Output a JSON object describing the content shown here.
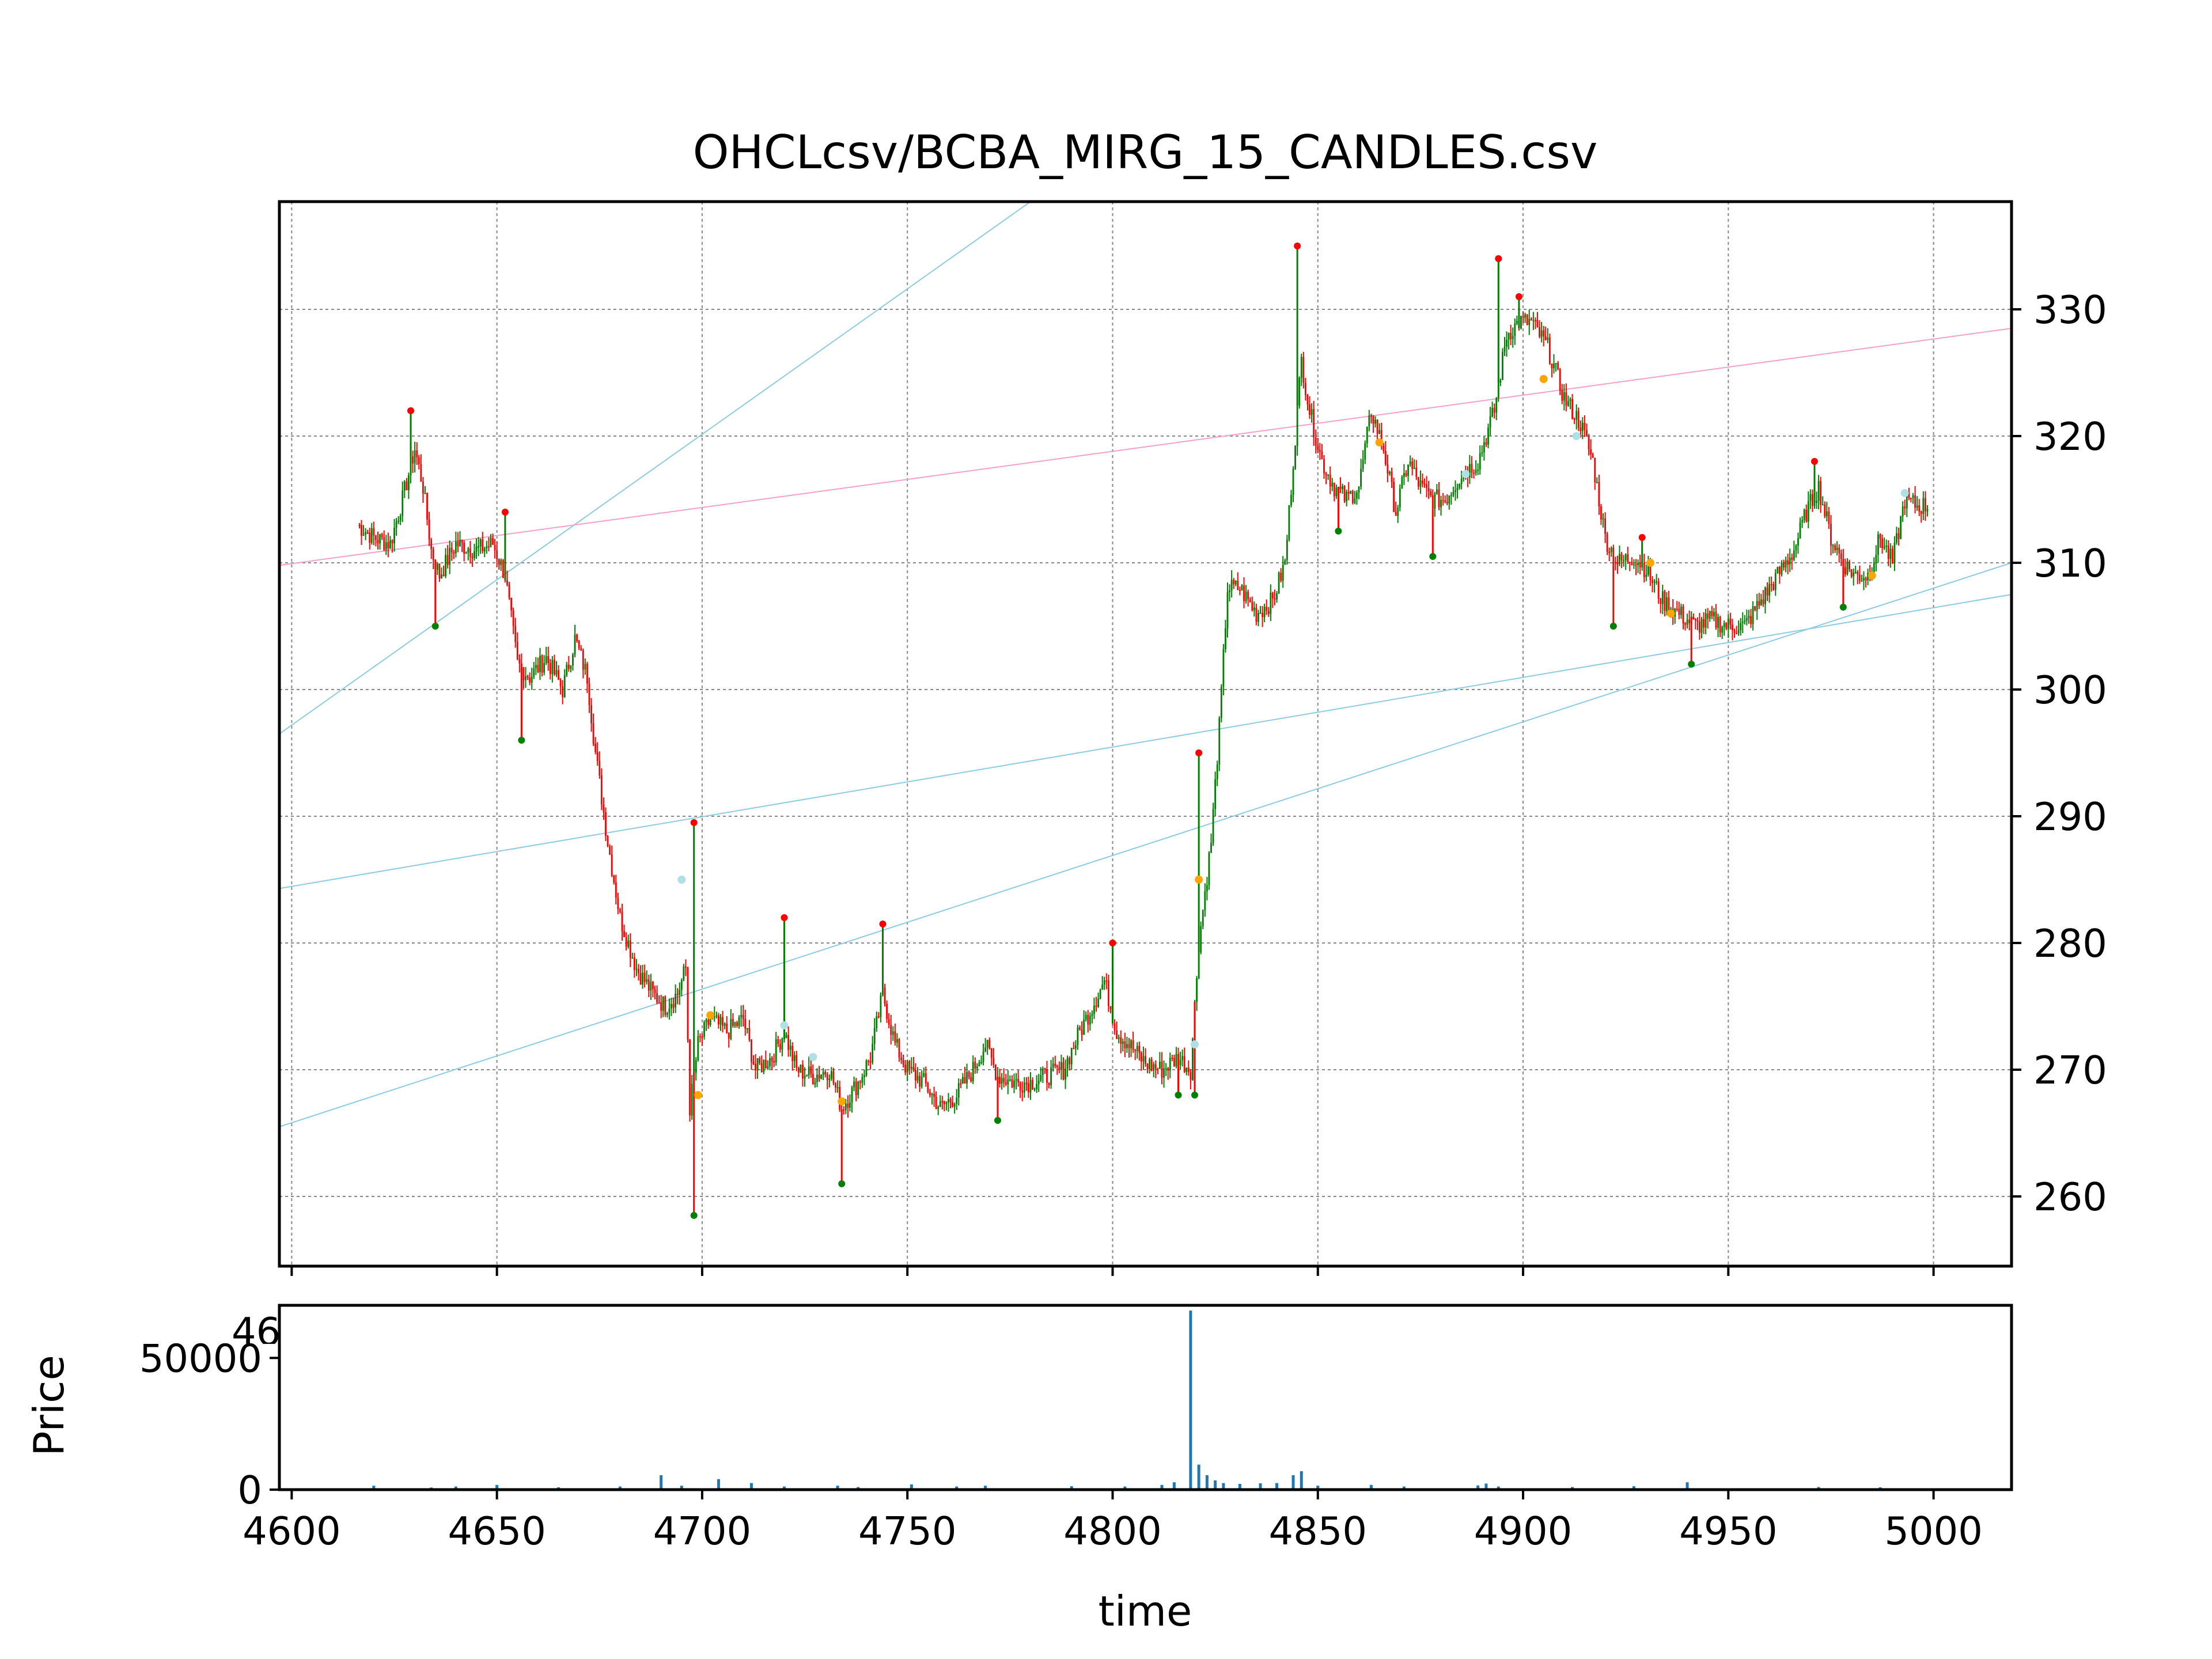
{
  "chart_data": [
    {
      "type": "candlestick",
      "title": "OHCLcsv/BCBA_MIRG_15_CANDLES.csv",
      "y_axis_side": "right",
      "xlim": [
        4597,
        5019
      ],
      "ylim": [
        254.5,
        338.5
      ],
      "x_ticks": [
        4600,
        4650,
        4700,
        4750,
        4800,
        4850,
        4900,
        4950,
        5000
      ],
      "y_ticks": [
        260,
        270,
        280,
        290,
        300,
        310,
        320,
        330
      ],
      "grid": true,
      "colors": {
        "up": "#008000",
        "down": "#ff0000",
        "grid": "#888888",
        "trend_blue": "#8ccbe0",
        "trend_pink": "#f4a0c8",
        "marker_orange": "#ffa500",
        "marker_cyan": "#b0e0e6"
      },
      "close_path": [
        [
          4616,
          313
        ],
        [
          4620,
          312
        ],
        [
          4624,
          311.5
        ],
        [
          4627,
          315
        ],
        [
          4630,
          319
        ],
        [
          4632,
          316
        ],
        [
          4634,
          311
        ],
        [
          4636,
          309
        ],
        [
          4640,
          311.5
        ],
        [
          4645,
          311
        ],
        [
          4649,
          311.5
        ],
        [
          4652,
          309
        ],
        [
          4655,
          302
        ],
        [
          4658,
          301
        ],
        [
          4662,
          302.5
        ],
        [
          4666,
          300
        ],
        [
          4669,
          304
        ],
        [
          4672,
          301
        ],
        [
          4674,
          295
        ],
        [
          4677,
          288
        ],
        [
          4680,
          282
        ],
        [
          4684,
          278
        ],
        [
          4688,
          276
        ],
        [
          4691,
          275
        ],
        [
          4694,
          276
        ],
        [
          4696,
          278
        ],
        [
          4697,
          267
        ],
        [
          4699,
          272
        ],
        [
          4702,
          274
        ],
        [
          4706,
          273
        ],
        [
          4710,
          274
        ],
        [
          4713,
          270
        ],
        [
          4717,
          271
        ],
        [
          4720,
          273
        ],
        [
          4723,
          270
        ],
        [
          4727,
          269.5
        ],
        [
          4731,
          270
        ],
        [
          4734,
          267
        ],
        [
          4738,
          269
        ],
        [
          4741,
          271
        ],
        [
          4744,
          276
        ],
        [
          4747,
          272
        ],
        [
          4750,
          270
        ],
        [
          4754,
          269
        ],
        [
          4758,
          267
        ],
        [
          4762,
          268
        ],
        [
          4766,
          270
        ],
        [
          4769,
          272
        ],
        [
          4772,
          269.5
        ],
        [
          4776,
          269
        ],
        [
          4780,
          269
        ],
        [
          4784,
          269.5
        ],
        [
          4788,
          270
        ],
        [
          4792,
          273
        ],
        [
          4795,
          275
        ],
        [
          4798,
          277
        ],
        [
          4801,
          273
        ],
        [
          4804,
          272
        ],
        [
          4808,
          270.5
        ],
        [
          4812,
          270
        ],
        [
          4816,
          271
        ],
        [
          4819,
          270
        ],
        [
          4821,
          280
        ],
        [
          4824,
          288
        ],
        [
          4826,
          297
        ],
        [
          4828,
          308
        ],
        [
          4831,
          308
        ],
        [
          4835,
          306
        ],
        [
          4839,
          307
        ],
        [
          4842,
          310
        ],
        [
          4845,
          322
        ],
        [
          4846,
          326
        ],
        [
          4848,
          322
        ],
        [
          4851,
          318
        ],
        [
          4854,
          316
        ],
        [
          4857,
          315
        ],
        [
          4860,
          316
        ],
        [
          4863,
          322
        ],
        [
          4866,
          319
        ],
        [
          4869,
          314
        ],
        [
          4872,
          318
        ],
        [
          4875,
          316
        ],
        [
          4878,
          315
        ],
        [
          4881,
          315
        ],
        [
          4885,
          317
        ],
        [
          4889,
          318
        ],
        [
          4893,
          322
        ],
        [
          4896,
          328
        ],
        [
          4899,
          329
        ],
        [
          4902,
          329
        ],
        [
          4906,
          327
        ],
        [
          4910,
          323
        ],
        [
          4914,
          321
        ],
        [
          4917,
          318
        ],
        [
          4920,
          312
        ],
        [
          4923,
          310
        ],
        [
          4927,
          310.5
        ],
        [
          4930,
          309.5
        ],
        [
          4934,
          307
        ],
        [
          4938,
          306
        ],
        [
          4942,
          305
        ],
        [
          4946,
          305.5
        ],
        [
          4950,
          305
        ],
        [
          4954,
          305
        ],
        [
          4958,
          307
        ],
        [
          4962,
          309
        ],
        [
          4966,
          311
        ],
        [
          4969,
          314
        ],
        [
          4972,
          316
        ],
        [
          4975,
          312
        ],
        [
          4978,
          310
        ],
        [
          4981,
          309
        ],
        [
          4984,
          309
        ],
        [
          4987,
          312
        ],
        [
          4990,
          310
        ],
        [
          4993,
          315
        ],
        [
          4996,
          314.5
        ],
        [
          4999,
          314.5
        ]
      ],
      "spike_highs": [
        [
          4629,
          322
        ],
        [
          4652,
          314
        ],
        [
          4698,
          289.5
        ],
        [
          4720,
          282
        ],
        [
          4744,
          281.5
        ],
        [
          4800,
          280
        ],
        [
          4821,
          295
        ],
        [
          4845,
          335
        ],
        [
          4894,
          334
        ],
        [
          4899,
          331
        ],
        [
          4929,
          312
        ],
        [
          4971,
          318
        ]
      ],
      "spike_lows": [
        [
          4635,
          305
        ],
        [
          4656,
          296
        ],
        [
          4698,
          258.5
        ],
        [
          4734,
          261
        ],
        [
          4772,
          266
        ],
        [
          4816,
          268
        ],
        [
          4820,
          268
        ],
        [
          4855,
          312.5
        ],
        [
          4878,
          310.5
        ],
        [
          4922,
          305
        ],
        [
          4941,
          302
        ],
        [
          4978,
          306.5
        ]
      ],
      "trend_lines": [
        {
          "from": [
            4597,
            284.3
          ],
          "to": [
            5019,
            307.5
          ],
          "color": "blue"
        },
        {
          "from": [
            4597,
            265.5
          ],
          "to": [
            5019,
            310
          ],
          "color": "blue"
        },
        {
          "from": [
            4597,
            296.5
          ],
          "to": [
            4780,
            338.5
          ],
          "color": "blue"
        },
        {
          "from": [
            4597,
            309.8
          ],
          "to": [
            5019,
            328.5
          ],
          "color": "pink"
        }
      ],
      "markers": [
        {
          "x": 4695,
          "y": 285,
          "color": "cyan"
        },
        {
          "x": 4702,
          "y": 274.3,
          "color": "orange"
        },
        {
          "x": 4699,
          "y": 268,
          "color": "orange"
        },
        {
          "x": 4720,
          "y": 273.5,
          "color": "cyan"
        },
        {
          "x": 4727,
          "y": 271,
          "color": "cyan"
        },
        {
          "x": 4734,
          "y": 267.5,
          "color": "orange"
        },
        {
          "x": 4820,
          "y": 272,
          "color": "cyan"
        },
        {
          "x": 4821,
          "y": 285,
          "color": "orange"
        },
        {
          "x": 4865,
          "y": 319.5,
          "color": "orange"
        },
        {
          "x": 4886,
          "y": 317,
          "color": "cyan"
        },
        {
          "x": 4905,
          "y": 324.5,
          "color": "orange"
        },
        {
          "x": 4913,
          "y": 320,
          "color": "cyan"
        },
        {
          "x": 4931,
          "y": 310,
          "color": "orange"
        },
        {
          "x": 4936,
          "y": 306,
          "color": "orange"
        },
        {
          "x": 4985,
          "y": 309,
          "color": "orange"
        },
        {
          "x": 4993,
          "y": 315.5,
          "color": "cyan"
        }
      ]
    },
    {
      "type": "bar",
      "ylabel": "Price",
      "xlabel": "time",
      "xlim": [
        4597,
        5019
      ],
      "ylim": [
        0,
        70000
      ],
      "x_ticks": [
        4600,
        4650,
        4700,
        4750,
        4800,
        4850,
        4900,
        4950,
        5000
      ],
      "y_ticks": [
        0,
        50000
      ],
      "overlap_label": "46",
      "bar_color": "#1f77b4",
      "volume_bars": [
        [
          4620,
          1500
        ],
        [
          4634,
          800
        ],
        [
          4640,
          1200
        ],
        [
          4650,
          1800
        ],
        [
          4665,
          900
        ],
        [
          4680,
          1200
        ],
        [
          4690,
          5500
        ],
        [
          4695,
          1500
        ],
        [
          4704,
          4000
        ],
        [
          4712,
          2500
        ],
        [
          4720,
          1200
        ],
        [
          4733,
          1500
        ],
        [
          4738,
          1000
        ],
        [
          4751,
          2000
        ],
        [
          4762,
          1200
        ],
        [
          4769,
          1500
        ],
        [
          4790,
          1300
        ],
        [
          4803,
          1200
        ],
        [
          4812,
          1800
        ],
        [
          4815,
          2800
        ],
        [
          4819,
          68000
        ],
        [
          4821,
          9500
        ],
        [
          4823,
          5500
        ],
        [
          4825,
          3500
        ],
        [
          4827,
          2500
        ],
        [
          4831,
          2200
        ],
        [
          4836,
          2400
        ],
        [
          4840,
          2500
        ],
        [
          4844,
          5500
        ],
        [
          4846,
          7000
        ],
        [
          4850,
          1500
        ],
        [
          4863,
          1800
        ],
        [
          4871,
          1200
        ],
        [
          4889,
          1600
        ],
        [
          4891,
          2300
        ],
        [
          4894,
          1200
        ],
        [
          4912,
          1000
        ],
        [
          4927,
          1300
        ],
        [
          4940,
          2800
        ],
        [
          4972,
          1000
        ],
        [
          4987,
          900
        ]
      ]
    }
  ]
}
